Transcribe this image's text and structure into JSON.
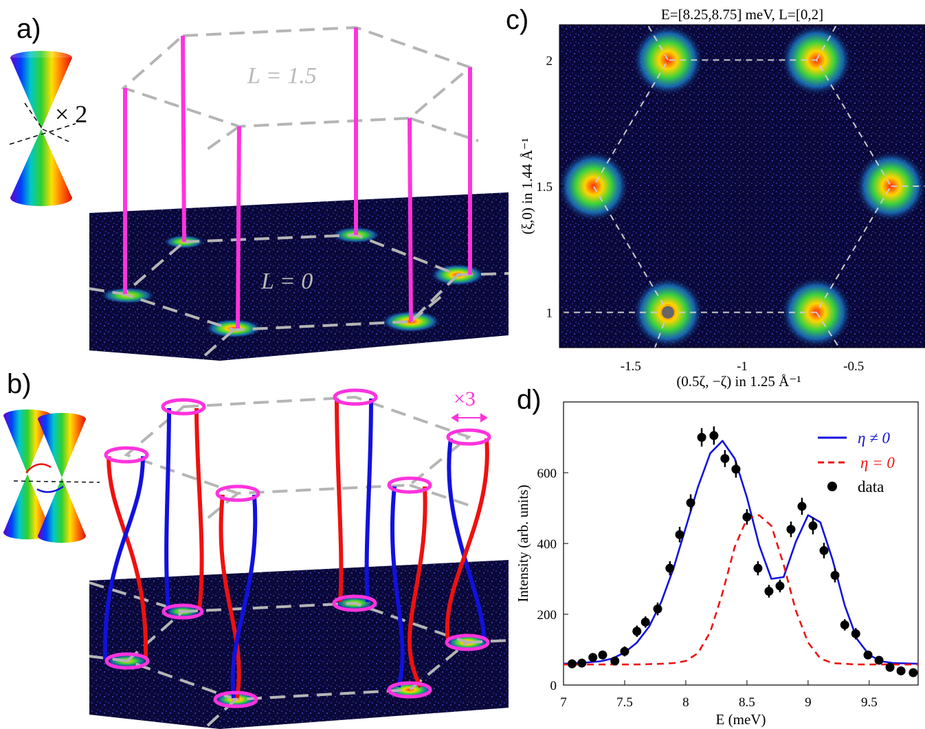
{
  "panels": {
    "a": {
      "label": "a)",
      "cone_multiplier": "× 2",
      "plane_top_label": "L = 1.5",
      "plane_bottom_label": "L = 0"
    },
    "b": {
      "label": "b)",
      "ring_multiplier": "×3"
    },
    "c": {
      "label": "c)"
    },
    "d": {
      "label": "d)"
    }
  },
  "colors": {
    "magenta": "#ff33dd",
    "red": "#ee1111",
    "blue": "#1111dd",
    "gray_dash": "#b5b5b5",
    "map_background": "#0a0838"
  },
  "chart_data": [
    {
      "type": "heatmap",
      "title": "E=[8.25,8.75] meV, L=[0,2]",
      "xlabel": "(0.5ζ, −ζ) in 1.25 Å⁻¹",
      "ylabel": "(ξ,0) in 1.44 Å⁻¹",
      "xlim": [
        -1.82,
        -0.18
      ],
      "ylim": [
        0.86,
        2.14
      ],
      "xticks": [
        -1.5,
        -1,
        -0.5
      ],
      "xtick_labels": [
        "-1.5",
        "-1",
        "-0.5"
      ],
      "yticks": [
        1,
        1.5,
        2
      ],
      "ytick_labels": [
        "1",
        "1.5",
        "2"
      ],
      "hexagon_vertices": [
        [
          -1.333,
          1.0
        ],
        [
          -0.667,
          1.0
        ],
        [
          -0.333,
          1.5
        ],
        [
          -0.667,
          2.0
        ],
        [
          -1.333,
          2.0
        ],
        [
          -1.667,
          1.5
        ]
      ],
      "intensity_spots": [
        {
          "x": -1.333,
          "y": 1.0
        },
        {
          "x": -0.667,
          "y": 1.0
        },
        {
          "x": -0.333,
          "y": 1.5
        },
        {
          "x": -0.667,
          "y": 2.0
        },
        {
          "x": -1.333,
          "y": 2.0
        },
        {
          "x": -1.667,
          "y": 1.5
        }
      ],
      "marker": {
        "x": -1.333,
        "y": 1.0
      }
    },
    {
      "type": "line",
      "xlabel": "E (meV)",
      "ylabel": "Intensity (arb. units)",
      "xlim": [
        7,
        9.9
      ],
      "ylim": [
        0,
        800
      ],
      "xticks": [
        7,
        7.5,
        8,
        8.5,
        9,
        9.5
      ],
      "xtick_labels": [
        "7",
        "7.5",
        "8",
        "8.5",
        "9",
        "9.5"
      ],
      "yticks": [
        0,
        200,
        400,
        600
      ],
      "ytick_labels": [
        "0",
        "200",
        "400",
        "600"
      ],
      "legend_position": "top-right",
      "series": [
        {
          "name": "η ≠ 0",
          "style": "solid",
          "color": "#1111dd",
          "x": [
            7.0,
            7.1,
            7.2,
            7.3,
            7.4,
            7.5,
            7.6,
            7.7,
            7.8,
            7.9,
            8.0,
            8.1,
            8.2,
            8.3,
            8.4,
            8.5,
            8.6,
            8.7,
            8.8,
            8.9,
            9.0,
            9.1,
            9.2,
            9.3,
            9.4,
            9.5,
            9.6,
            9.7,
            9.8,
            9.9
          ],
          "y": [
            60,
            62,
            64,
            67,
            75,
            92,
            120,
            165,
            235,
            330,
            445,
            560,
            655,
            690,
            640,
            530,
            395,
            300,
            305,
            405,
            480,
            460,
            355,
            225,
            130,
            85,
            67,
            62,
            61,
            60
          ]
        },
        {
          "name": "η = 0",
          "style": "dashed",
          "color": "#ee1111",
          "x": [
            7.0,
            7.2,
            7.4,
            7.6,
            7.8,
            7.9,
            8.0,
            8.1,
            8.2,
            8.3,
            8.4,
            8.5,
            8.6,
            8.7,
            8.8,
            8.9,
            9.0,
            9.1,
            9.2,
            9.4,
            9.6,
            9.8,
            9.9
          ],
          "y": [
            58,
            58,
            58,
            58,
            60,
            62,
            68,
            90,
            150,
            260,
            390,
            470,
            480,
            450,
            340,
            210,
            120,
            75,
            62,
            58,
            58,
            58,
            58
          ]
        },
        {
          "name": "data",
          "style": "markers",
          "color": "#000000",
          "x": [
            7.07,
            7.15,
            7.24,
            7.32,
            7.42,
            7.5,
            7.6,
            7.67,
            7.77,
            7.87,
            7.95,
            8.04,
            8.13,
            8.23,
            8.32,
            8.41,
            8.5,
            8.59,
            8.68,
            8.77,
            8.86,
            8.95,
            9.04,
            9.13,
            9.22,
            9.3,
            9.39,
            9.49,
            9.58,
            9.67,
            9.76,
            9.86
          ],
          "y": [
            60,
            62,
            78,
            85,
            68,
            95,
            152,
            178,
            215,
            330,
            425,
            515,
            700,
            705,
            640,
            610,
            475,
            330,
            265,
            280,
            440,
            505,
            450,
            380,
            310,
            170,
            145,
            85,
            70,
            50,
            40,
            35
          ],
          "err": [
            10,
            10,
            12,
            12,
            12,
            14,
            16,
            16,
            18,
            20,
            22,
            24,
            26,
            26,
            24,
            24,
            22,
            20,
            18,
            18,
            22,
            24,
            24,
            22,
            20,
            16,
            16,
            12,
            10,
            10,
            8,
            8
          ]
        }
      ]
    }
  ]
}
